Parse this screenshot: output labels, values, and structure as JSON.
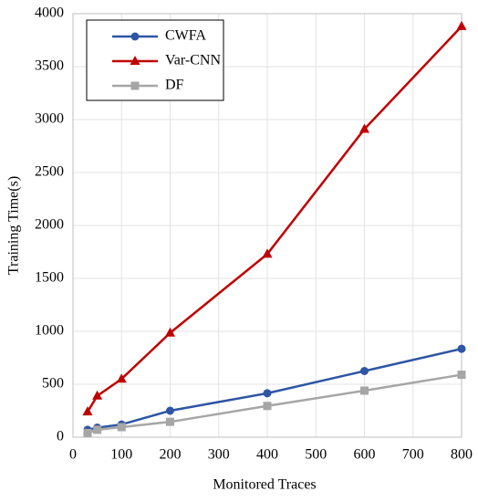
{
  "chart_data": {
    "type": "line",
    "x_label": "Monitored Traces",
    "y_label": "Training Time(s)",
    "x": [
      30,
      50,
      100,
      200,
      400,
      600,
      800
    ],
    "series": [
      {
        "name": "CWFA",
        "color": "#2f55a4",
        "marker": "circle",
        "values": [
          70,
          90,
          120,
          250,
          415,
          625,
          835
        ]
      },
      {
        "name": "Var-CNN",
        "color": "#c00000",
        "marker": "triangle",
        "values": [
          240,
          390,
          550,
          985,
          1730,
          2910,
          3880
        ]
      },
      {
        "name": "DF",
        "color": "#a6a6a6",
        "marker": "square",
        "values": [
          40,
          70,
          95,
          145,
          295,
          440,
          590
        ]
      }
    ],
    "xlim": [
      0,
      800
    ],
    "xticks": [
      0,
      100,
      200,
      300,
      400,
      500,
      600,
      700,
      800
    ],
    "ylim": [
      0,
      4000
    ],
    "yticks": [
      0,
      500,
      1000,
      1500,
      2000,
      2500,
      3000,
      3500,
      4000
    ],
    "grid": true,
    "legend": "upper-left"
  }
}
